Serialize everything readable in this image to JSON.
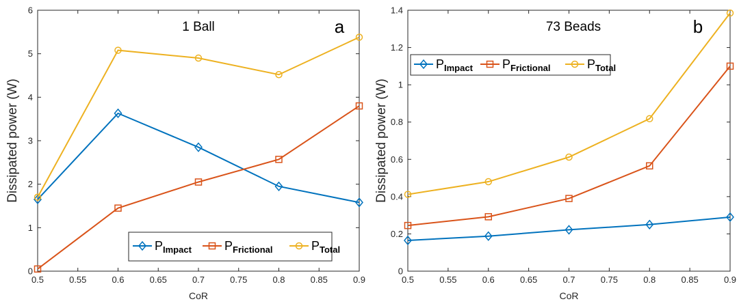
{
  "chart_data": [
    {
      "type": "line",
      "title": "1 Ball",
      "panel_label": "a",
      "xlabel": "CoR",
      "ylabel": "Dissipated power (W)",
      "xlim": [
        0.5,
        0.9
      ],
      "ylim": [
        0,
        6
      ],
      "x_ticks": [
        0.5,
        0.55,
        0.6,
        0.65,
        0.7,
        0.75,
        0.8,
        0.85,
        0.9
      ],
      "x_tick_labels": [
        "0.5",
        "0.55",
        "0.6",
        "0.65",
        "0.7",
        "0.75",
        "0.8",
        "0.85",
        "0.9"
      ],
      "y_ticks": [
        0,
        1,
        2,
        3,
        4,
        5,
        6
      ],
      "y_tick_labels": [
        "0",
        "1",
        "2",
        "3",
        "4",
        "5",
        "6"
      ],
      "grid": false,
      "legend_position": "bottom-right",
      "legend_orientation": "horizontal",
      "x": [
        0.5,
        0.6,
        0.7,
        0.8,
        0.9
      ],
      "series": [
        {
          "name": "P",
          "subscript": "Impact",
          "color": "#0072BD",
          "marker": "diamond",
          "values": [
            1.65,
            3.63,
            2.85,
            1.95,
            1.58
          ]
        },
        {
          "name": "P",
          "subscript": "Frictional",
          "color": "#D95319",
          "marker": "square",
          "values": [
            0.05,
            1.45,
            2.05,
            2.57,
            3.8
          ]
        },
        {
          "name": "P",
          "subscript": "Total",
          "color": "#EDB120",
          "marker": "circle",
          "values": [
            1.7,
            5.08,
            4.9,
            4.52,
            5.38
          ]
        }
      ]
    },
    {
      "type": "line",
      "title": "73 Beads",
      "panel_label": "b",
      "xlabel": "CoR",
      "ylabel": "Dissipated power (W)",
      "xlim": [
        0.5,
        0.9
      ],
      "ylim": [
        0,
        1.4
      ],
      "x_ticks": [
        0.5,
        0.55,
        0.6,
        0.65,
        0.7,
        0.75,
        0.8,
        0.85,
        0.9
      ],
      "x_tick_labels": [
        "0.5",
        "0.55",
        "0.6",
        "0.65",
        "0.7",
        "0.75",
        "0.8",
        "0.85",
        "0.9"
      ],
      "y_ticks": [
        0,
        0.2,
        0.4,
        0.6,
        0.8,
        1,
        1.2,
        1.4
      ],
      "y_tick_labels": [
        "0",
        "0.2",
        "0.4",
        "0.6",
        "0.8",
        "1",
        "1.2",
        "1.4"
      ],
      "grid": false,
      "legend_position": "top-left",
      "legend_orientation": "horizontal",
      "x": [
        0.5,
        0.6,
        0.7,
        0.8,
        0.9
      ],
      "series": [
        {
          "name": "P",
          "subscript": "Impact",
          "color": "#0072BD",
          "marker": "diamond",
          "values": [
            0.165,
            0.188,
            0.222,
            0.25,
            0.29
          ]
        },
        {
          "name": "P",
          "subscript": "Frictional",
          "color": "#D95319",
          "marker": "square",
          "values": [
            0.245,
            0.292,
            0.39,
            0.565,
            1.1
          ]
        },
        {
          "name": "P",
          "subscript": "Total",
          "color": "#EDB120",
          "marker": "circle",
          "values": [
            0.412,
            0.48,
            0.612,
            0.818,
            1.385
          ]
        }
      ]
    }
  ]
}
